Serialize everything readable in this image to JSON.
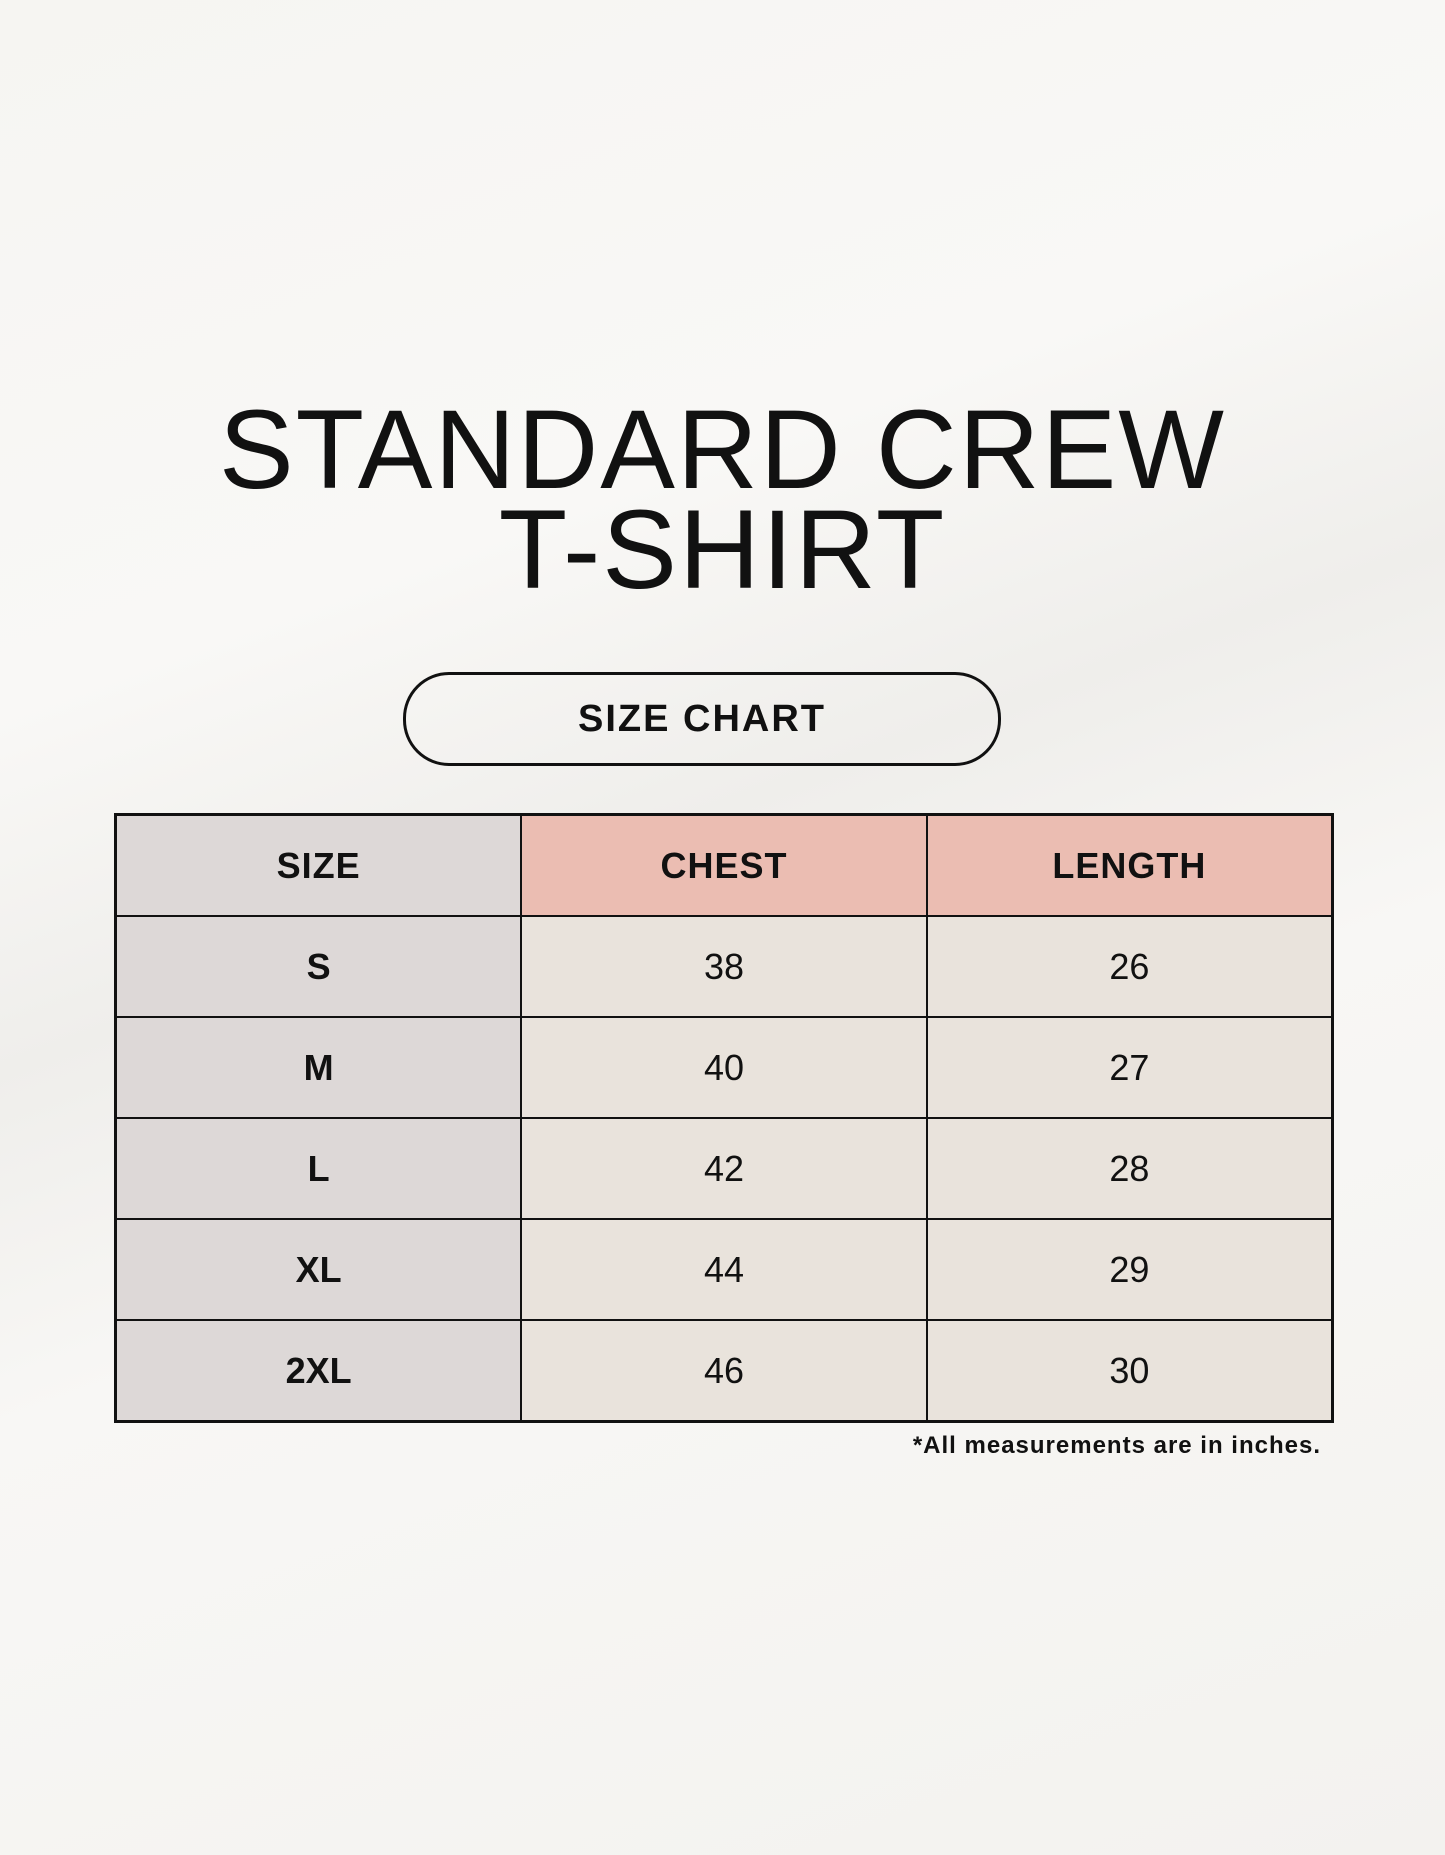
{
  "title": {
    "line1": "STANDARD CREW",
    "line2": "T-SHIRT"
  },
  "subtitle": "SIZE CHART",
  "table": {
    "headers": [
      "SIZE",
      "CHEST",
      "LENGTH"
    ],
    "rows": [
      {
        "size": "S",
        "chest": "38",
        "length": "26"
      },
      {
        "size": "M",
        "chest": "40",
        "length": "27"
      },
      {
        "size": "L",
        "chest": "42",
        "length": "28"
      },
      {
        "size": "XL",
        "chest": "44",
        "length": "29"
      },
      {
        "size": "2XL",
        "chest": "46",
        "length": "30"
      }
    ]
  },
  "note": "*All measurements are in inches.",
  "colors": {
    "size_column": "#ddd8d7",
    "header_accent": "#ebbdb2",
    "value_cells": "#e9e3dc"
  }
}
